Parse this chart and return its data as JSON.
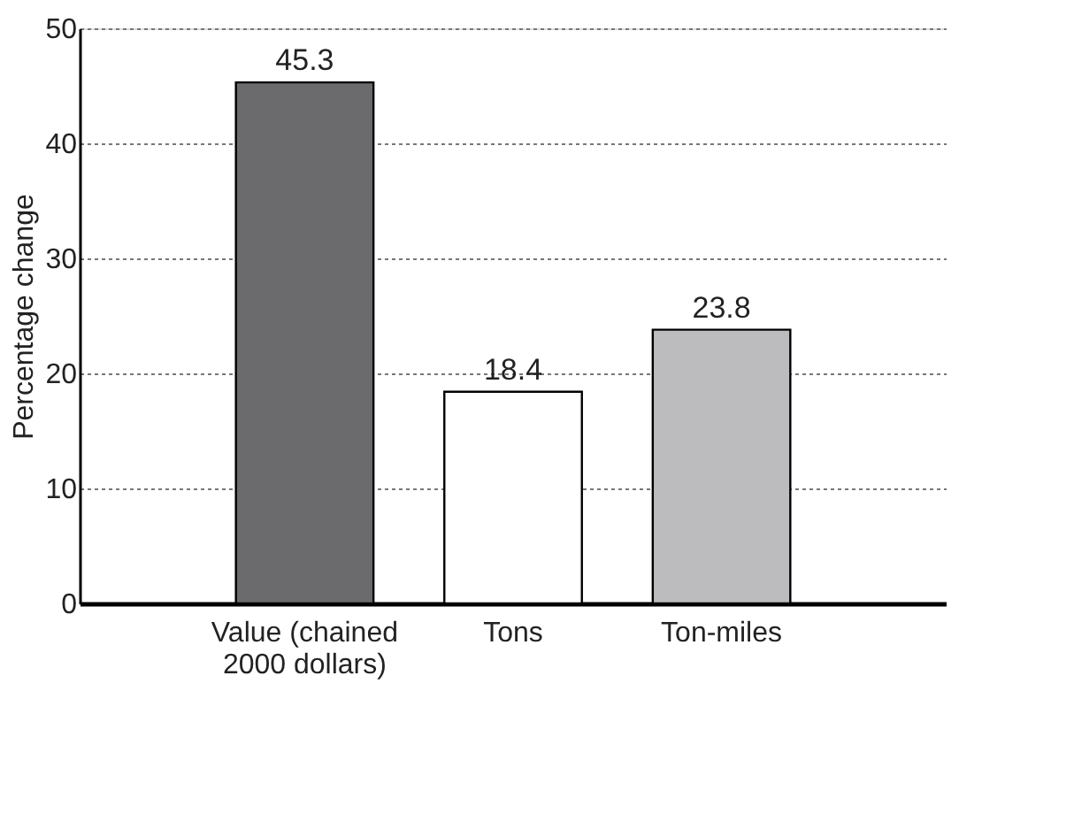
{
  "chart_data": {
    "type": "bar",
    "ylabel": "Percentage change",
    "categories": [
      "Value (chained 2000 dollars)",
      "Tons",
      "Ton-miles"
    ],
    "values": [
      45.3,
      18.4,
      23.8
    ],
    "colors": [
      "#6b6b6e",
      "#ffffff",
      "#bcbcbf"
    ],
    "ylim": [
      0,
      50
    ],
    "yticks": [
      0,
      10,
      20,
      30,
      40,
      50
    ],
    "grid": "y",
    "data_labels": true
  }
}
